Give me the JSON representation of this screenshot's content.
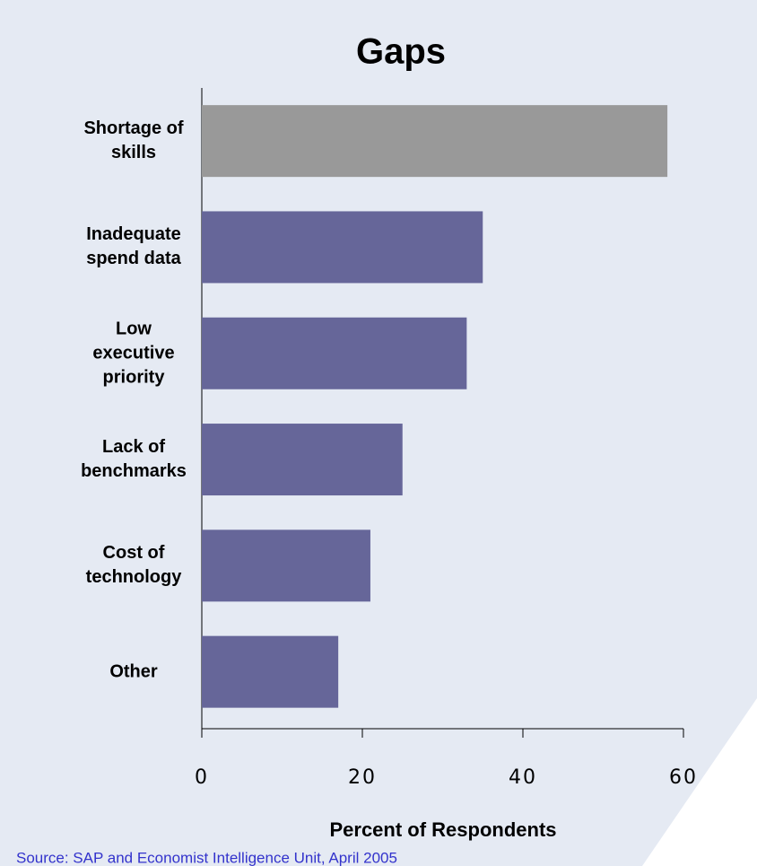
{
  "chart_data": {
    "type": "bar",
    "orientation": "horizontal",
    "title": "Gaps",
    "categories": [
      "Shortage of skills",
      "Inadequate spend data",
      "Low executive priority",
      "Lack of benchmarks",
      "Cost of technology",
      "Other"
    ],
    "values": [
      58,
      35,
      33,
      25,
      21,
      17
    ],
    "colors": [
      "#999999",
      "#666699",
      "#666699",
      "#666699",
      "#666699",
      "#666699"
    ],
    "xlabel": "Percent of Respondents",
    "xlim": [
      0,
      60
    ],
    "xticks": [
      0,
      20,
      40,
      60
    ],
    "grid": false,
    "source": "Source: SAP and Economist Intelligence Unit, April 2005"
  }
}
